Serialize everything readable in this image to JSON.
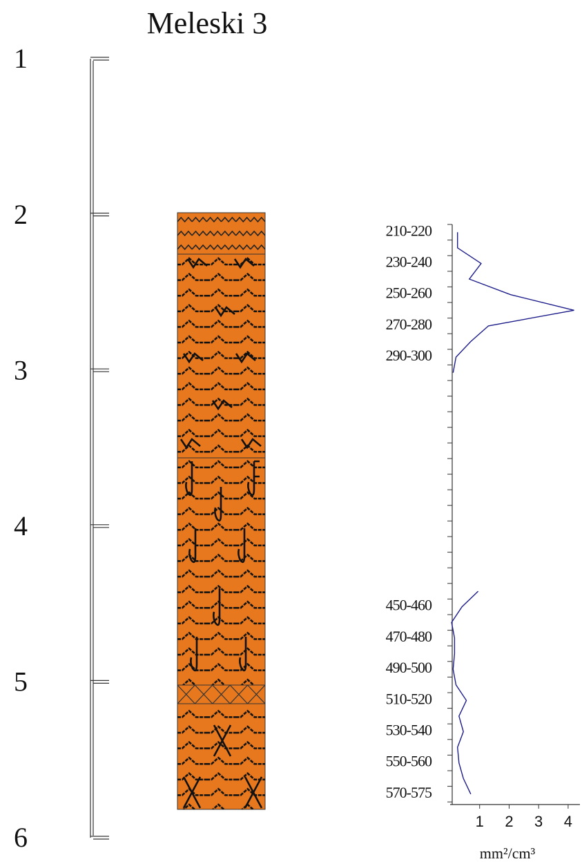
{
  "title": "Meleski 3",
  "depth_ticks": [
    1,
    2,
    3,
    4,
    5,
    6
  ],
  "chart_data": {
    "type": "line",
    "categories": [
      "210-220",
      null,
      "230-240",
      null,
      "250-260",
      null,
      "270-280",
      null,
      "290-300",
      null,
      null,
      null,
      null,
      null,
      null,
      null,
      null,
      null,
      null,
      null,
      null,
      null,
      null,
      null,
      "450-460",
      null,
      "470-480",
      null,
      "490-500",
      null,
      "510-520",
      null,
      "530-540",
      null,
      "550-560",
      null,
      "570-575"
    ],
    "series": [
      {
        "color": "#1c1c8a",
        "values": [
          0.25,
          0.25,
          1.05,
          0.65,
          2.05,
          4.2,
          1.3,
          0.7,
          0.2,
          0.1,
          null,
          null,
          null,
          null,
          null,
          null,
          null,
          null,
          null,
          null,
          null,
          null,
          null,
          0.95,
          0.4,
          0.05,
          0.15,
          0.15,
          0.1,
          0.2,
          0.55,
          0.3,
          0.45,
          0.25,
          0.3,
          0.45,
          0.7
        ]
      }
    ],
    "xlim": [
      0,
      4.4
    ],
    "xticks": [
      1,
      2,
      3,
      4
    ],
    "xlabel": "mm²/cm³"
  }
}
